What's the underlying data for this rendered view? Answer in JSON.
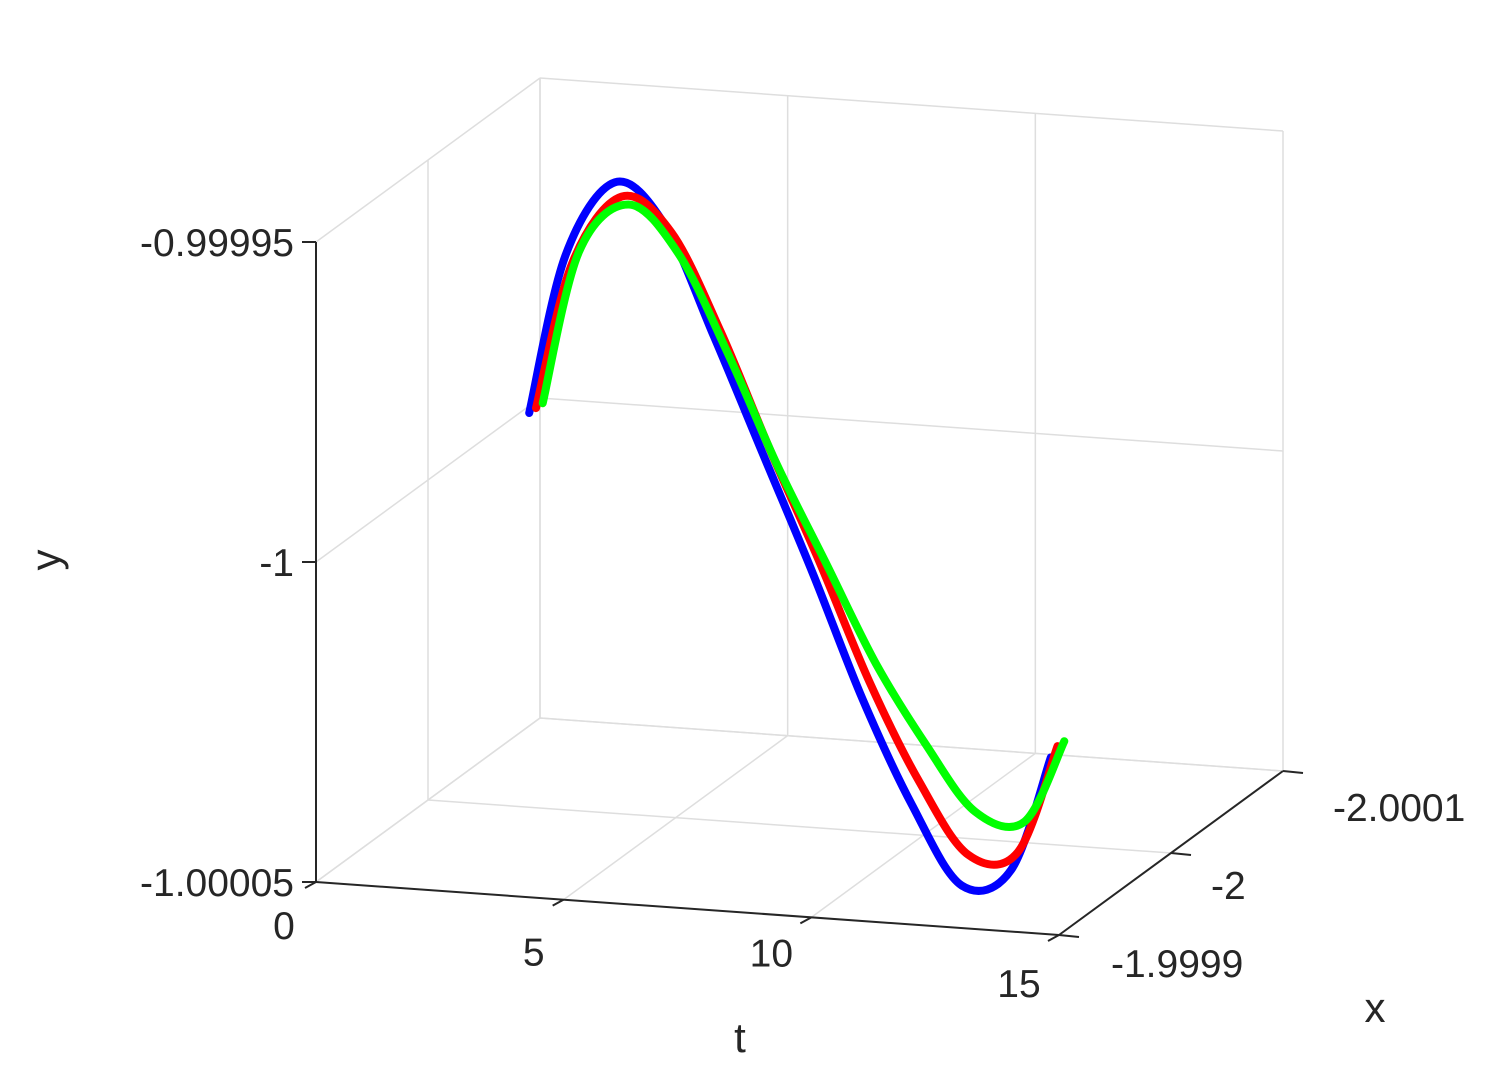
{
  "chart_data": {
    "type": "line",
    "view": "3d",
    "title": "",
    "xlabel": "t",
    "ylabel": "y",
    "zlabel": "x",
    "t_ticks": [
      "0",
      "5",
      "10",
      "15"
    ],
    "y_ticks": [
      "-1.00005",
      "-1",
      "-0.99995"
    ],
    "x_ticks": [
      "-1.9999",
      "-2",
      "-2.0001"
    ],
    "grid": true,
    "series": [
      {
        "color": "#0000ff",
        "points": [
          {
            "t": 2.27,
            "y": -0.999987
          },
          {
            "t": 3.0,
            "y": -0.999962
          },
          {
            "t": 4.0,
            "y": -0.99995
          },
          {
            "t": 5.0,
            "y": -0.999956
          },
          {
            "t": 6.0,
            "y": -0.999973
          },
          {
            "t": 7.0,
            "y": -0.999991
          },
          {
            "t": 8.0,
            "y": -1.000009
          },
          {
            "t": 9.0,
            "y": -1.000028
          },
          {
            "t": 10.0,
            "y": -1.000044
          },
          {
            "t": 11.0,
            "y": -1.000056
          },
          {
            "t": 12.0,
            "y": -1.000053
          },
          {
            "t": 12.8,
            "y": -1.000035
          }
        ]
      },
      {
        "color": "#ff0000",
        "points": [
          {
            "t": 2.27,
            "y": -0.999987
          },
          {
            "t": 3.0,
            "y": -0.999964
          },
          {
            "t": 4.0,
            "y": -0.999953
          },
          {
            "t": 5.0,
            "y": -0.999958
          },
          {
            "t": 6.0,
            "y": -0.999973
          },
          {
            "t": 7.0,
            "y": -0.999991
          },
          {
            "t": 8.0,
            "y": -1.000008
          },
          {
            "t": 9.0,
            "y": -1.000026
          },
          {
            "t": 10.0,
            "y": -1.000041
          },
          {
            "t": 11.0,
            "y": -1.000052
          },
          {
            "t": 12.0,
            "y": -1.000051
          },
          {
            "t": 12.8,
            "y": -1.000034
          }
        ]
      },
      {
        "color": "#00ff00",
        "points": [
          {
            "t": 2.27,
            "y": -0.999987
          },
          {
            "t": 3.0,
            "y": -0.999963
          },
          {
            "t": 4.0,
            "y": -0.999955
          },
          {
            "t": 5.0,
            "y": -0.999962
          },
          {
            "t": 6.0,
            "y": -0.999977
          },
          {
            "t": 7.0,
            "y": -0.999994
          },
          {
            "t": 8.0,
            "y": -1.000009
          },
          {
            "t": 9.0,
            "y": -1.000024
          },
          {
            "t": 10.0,
            "y": -1.000036
          },
          {
            "t": 11.0,
            "y": -1.000046
          },
          {
            "t": 12.0,
            "y": -1.000047
          },
          {
            "t": 12.8,
            "y": -1.000034
          }
        ]
      }
    ]
  }
}
